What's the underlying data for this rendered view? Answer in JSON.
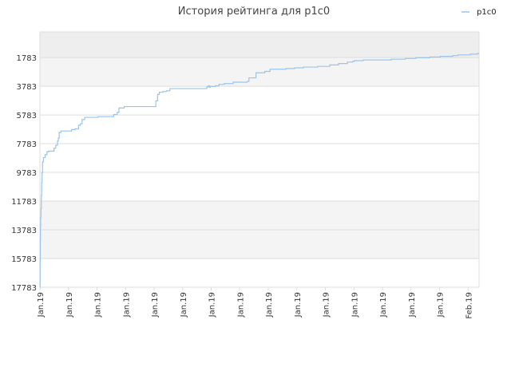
{
  "chart_data": {
    "type": "line",
    "title": "История рейтинга для p1c0",
    "legend": {
      "placement": "top-right",
      "entries": [
        "p1c0"
      ]
    },
    "series": [
      {
        "name": "p1c0",
        "color": "#99c4ee",
        "x": [
          0,
          0.1,
          0.2,
          0.3,
          0.4,
          0.6,
          0.8,
          1.0,
          1.2,
          1.5,
          2.0,
          3.0,
          4.0,
          5.0,
          8.0,
          9.0,
          10.0,
          10.5,
          11.0,
          12.0,
          18.0,
          20.0,
          22.0,
          23.0,
          24.0,
          25.5,
          26.0,
          33.0,
          37.0,
          40.0,
          42.0,
          44.0,
          45.0,
          48.0,
          55.0,
          65.0,
          66.0,
          67.0,
          68.0,
          70.0,
          72.0,
          74.0,
          76.0,
          95.0,
          95.5,
          96.0,
          96.5,
          97.0,
          100.0,
          102.0,
          105.0,
          110.0,
          118.0,
          119.0,
          123.0,
          128.0,
          131.0,
          140.0,
          145.0,
          150.0,
          158.0,
          165.0,
          170.0,
          175.0,
          178.0,
          179.0,
          180.0,
          184.0,
          200.0,
          208.0,
          214.0,
          222.0,
          228.0,
          235.0,
          238.0,
          245.0,
          249.0,
          250.0
        ],
        "y": [
          17783,
          16000,
          14500,
          13500,
          12900,
          12300,
          11400,
          10500,
          9800,
          9050,
          8750,
          8550,
          8350,
          8300,
          8100,
          7900,
          7600,
          7400,
          7000,
          6900,
          6800,
          6750,
          6500,
          6400,
          6100,
          5950,
          5950,
          5900,
          5900,
          5900,
          5750,
          5600,
          5300,
          5200,
          5200,
          5200,
          4800,
          4350,
          4200,
          4150,
          4100,
          3950,
          3950,
          3850,
          3800,
          3750,
          3850,
          3800,
          3750,
          3650,
          3600,
          3500,
          3450,
          3200,
          2850,
          2750,
          2600,
          2550,
          2500,
          2450,
          2400,
          2300,
          2200,
          2100,
          2050,
          2000,
          2000,
          1950,
          1900,
          1850,
          1800,
          1750,
          1700,
          1650,
          1600,
          1550,
          1500,
          1500
        ]
      }
    ],
    "xlim": [
      0,
      250
    ],
    "x_ticks": [
      "Jan.19",
      "Jan.19",
      "Jan.19",
      "Jan.19",
      "Jan.19",
      "Jan.19",
      "Jan.19",
      "Jan.19",
      "Jan.19",
      "Jan.19",
      "Jan.19",
      "Jan.19",
      "Jan.19",
      "Jan.19",
      "Jan.19",
      "Feb.19"
    ],
    "x_tick_positions": [
      0,
      16.25,
      32.5,
      48.75,
      65,
      81.25,
      97.5,
      113.75,
      130,
      146.25,
      162.5,
      178.75,
      195,
      211.25,
      227.5,
      243.75
    ],
    "y_ticks": [
      1783,
      3783,
      5783,
      7783,
      9783,
      11783,
      13783,
      15783,
      17783
    ],
    "ylim": [
      17783,
      0
    ],
    "y_inverted": true,
    "grid": true,
    "band_colors": [
      "#eeeeee",
      "#f4f4f4",
      "#ffffff"
    ]
  }
}
